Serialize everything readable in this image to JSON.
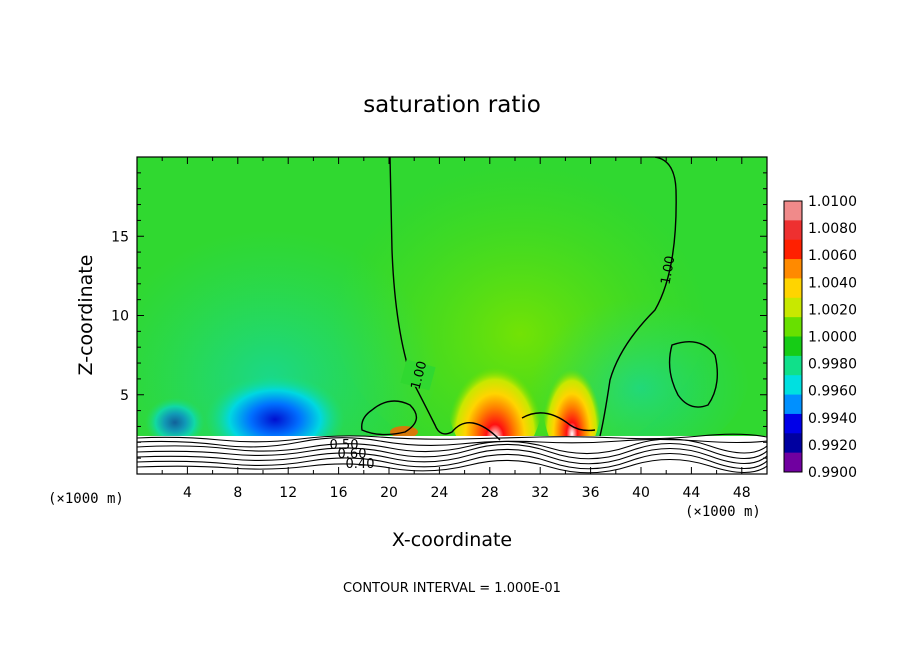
{
  "chart_data": {
    "type": "heatmap",
    "title": "saturation ratio",
    "xlabel": "X-coordinate",
    "ylabel": "Z-coordinate",
    "x_unit": "(×1000 m)",
    "xlim": [
      0,
      50
    ],
    "ylim": [
      0,
      20
    ],
    "x_ticks": [
      4,
      8,
      12,
      16,
      20,
      24,
      28,
      32,
      36,
      40,
      44,
      48
    ],
    "y_ticks": [
      5,
      10,
      15
    ],
    "footer": "CONTOUR INTERVAL = 1.000E-01",
    "colorbar": {
      "levels": [
        "1.0100",
        "1.0080",
        "1.0060",
        "1.0040",
        "1.0020",
        "1.0000",
        "0.9980",
        "0.9960",
        "0.9940",
        "0.9920",
        "0.9900"
      ],
      "colors": [
        "#f08a8a",
        "#ee3030",
        "#ff2000",
        "#ff8a00",
        "#ffd400",
        "#c8e800",
        "#68e000",
        "#16cc16",
        "#10e08a",
        "#00e0e0",
        "#0090ff",
        "#0000e8",
        "#0000a0",
        "#7000a0"
      ]
    },
    "contour_labels": [
      "1.00",
      "1.00",
      "0.50",
      "0.60",
      "0.40"
    ],
    "legend": "right"
  }
}
